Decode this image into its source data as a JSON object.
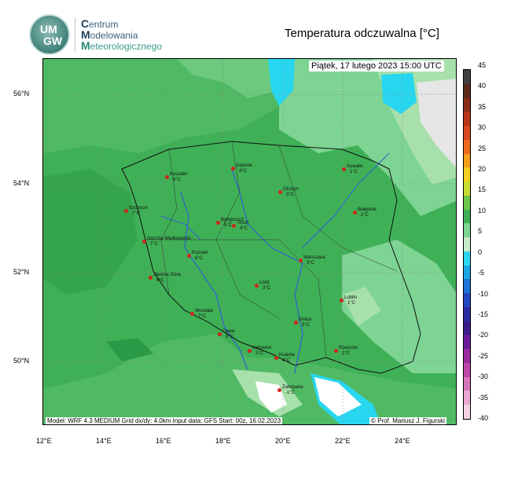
{
  "header": {
    "logo_text_top": "UM",
    "logo_text_bottom": "GW",
    "brand_lines": [
      {
        "initial": "C",
        "rest": "entrum"
      },
      {
        "initial": "M",
        "rest": "odelowania"
      },
      {
        "initial": "M",
        "rest": "eteorologicznego"
      }
    ],
    "title": "Temperatura odczuwalna [°C]"
  },
  "map": {
    "datetime": "Piątek, 17 lutego 2023 15:00 UTC",
    "footer_model": "Model: WRF 4.3 MEDIUM   Grid dx/dy: 4.0km   Input data: GFS   Start: 00z, 16.02.2023",
    "footer_credit": "© Prof. Mariusz J. Figurski",
    "lat_labels": [
      "56°N",
      "54°N",
      "52°N",
      "50°N"
    ],
    "lon_labels": [
      "12°E",
      "14°E",
      "16°E",
      "18°E",
      "20°E",
      "22°E",
      "24°E"
    ],
    "colors": {
      "base_green": "#3fb056",
      "light_green": "#7ed493",
      "pale_green": "#a8e0ac",
      "dark_green": "#2a9a47",
      "cyan": "#29d6f0",
      "white": "#ffffff",
      "grey_sea": "#e6e6e6"
    },
    "cities": [
      {
        "name": "Gdańsk",
        "temp": "4°C"
      },
      {
        "name": "Koszalin",
        "temp": "6°C"
      },
      {
        "name": "Suwałki",
        "temp": "1°C"
      },
      {
        "name": "Olsztyn",
        "temp": "3°C"
      },
      {
        "name": "Szczecin",
        "temp": "7°C"
      },
      {
        "name": "Białystok",
        "temp": "2°C"
      },
      {
        "name": "Bydgoszcz",
        "temp": "5°C"
      },
      {
        "name": "Toruń",
        "temp": "4°C"
      },
      {
        "name": "Gorzów Wielkopolski",
        "temp": "7°C"
      },
      {
        "name": "Poznań",
        "temp": "6°C"
      },
      {
        "name": "Warszawa",
        "temp": "3°C"
      },
      {
        "name": "Zielona Góra",
        "temp": "6°C"
      },
      {
        "name": "Łódź",
        "temp": "3°C"
      },
      {
        "name": "Lublin",
        "temp": "1°C"
      },
      {
        "name": "Wrocław",
        "temp": "7°C"
      },
      {
        "name": "Kielce",
        "temp": "3°C"
      },
      {
        "name": "Opole",
        "temp": "6°C"
      },
      {
        "name": "Katowice",
        "temp": "3°C"
      },
      {
        "name": "Kraków",
        "temp": "4°C"
      },
      {
        "name": "Rzeszów",
        "temp": "1°C"
      },
      {
        "name": "Zakopane",
        "temp": "-1°C"
      }
    ]
  },
  "colorbar": {
    "labels": [
      "45",
      "40",
      "35",
      "30",
      "25",
      "20",
      "15",
      "10",
      "5",
      "0",
      "-5",
      "-10",
      "-15",
      "-20",
      "-25",
      "-30",
      "-35",
      "-40"
    ],
    "colors": [
      "#404040",
      "#5a2a1a",
      "#8b2d16",
      "#b8341a",
      "#d9481e",
      "#ee6a1c",
      "#f59d1c",
      "#f5cf1f",
      "#c7dd33",
      "#6cc64a",
      "#3fb056",
      "#7ed493",
      "#c8eccb",
      "#2ad7f2",
      "#1aa6e6",
      "#1b74d8",
      "#2245c2",
      "#2a2aa3",
      "#3a1a8c",
      "#6a1a9a",
      "#9a2a9e",
      "#c046a8",
      "#d878bb",
      "#e9a8cf",
      "#f4d2e4"
    ]
  }
}
